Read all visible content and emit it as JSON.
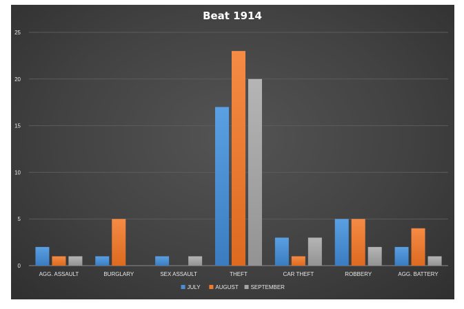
{
  "chart_data": {
    "type": "bar",
    "title": "Beat 1914",
    "xlabel": "",
    "ylabel": "",
    "categories": [
      "AGG. ASSAULT",
      "BURGLARY",
      "SEX ASSAULT",
      "THEFT",
      "CAR THEFT",
      "ROBBERY",
      "AGG. BATTERY"
    ],
    "series": [
      {
        "name": "JULY",
        "color": "#4a8fd4",
        "values": [
          2,
          1,
          1,
          17,
          3,
          5,
          2
        ]
      },
      {
        "name": "AUGUST",
        "color": "#ef7b2e",
        "values": [
          1,
          5,
          0,
          23,
          1,
          5,
          4
        ]
      },
      {
        "name": "SEPTEMBER",
        "color": "#a5a5a5",
        "values": [
          1,
          0,
          1,
          20,
          3,
          2,
          1
        ]
      }
    ],
    "ylim": [
      0,
      25
    ],
    "yticks": [
      0,
      5,
      10,
      15,
      20,
      25
    ],
    "grid": true,
    "legend_position": "bottom"
  }
}
